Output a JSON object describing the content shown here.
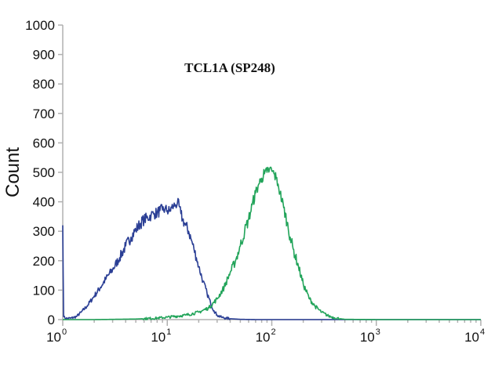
{
  "chart_data": {
    "type": "line",
    "title": "TCL1A (SP248)",
    "xlabel": "",
    "ylabel": "Count",
    "xscale": "log",
    "xlim": [
      1,
      10000
    ],
    "ylim": [
      0,
      1000
    ],
    "grid": false,
    "yticks": [
      "0",
      "100",
      "200",
      "300",
      "400",
      "500",
      "600",
      "700",
      "800",
      "900",
      "1000"
    ],
    "xticks": [
      {
        "base": "10",
        "exp": "0"
      },
      {
        "base": "10",
        "exp": "1"
      },
      {
        "base": "10",
        "exp": "2"
      },
      {
        "base": "10",
        "exp": "3"
      },
      {
        "base": "10",
        "exp": "4"
      }
    ],
    "series": [
      {
        "color": "#2b3f95",
        "x": [
          1,
          1.02,
          1.05,
          1.1,
          1.2,
          1.35,
          1.5,
          1.7,
          2,
          2.3,
          2.6,
          3,
          3.5,
          4,
          4.5,
          5,
          5.5,
          6,
          6.5,
          7,
          7.5,
          8,
          8.5,
          9,
          9.5,
          10,
          10.5,
          11,
          11.5,
          12,
          12.5,
          13,
          13.5,
          14,
          15,
          16,
          17,
          18,
          19,
          20,
          22,
          24,
          26,
          28,
          30,
          33,
          36,
          40,
          50,
          70,
          100,
          200,
          500,
          1000,
          10000
        ],
        "y": [
          320,
          10,
          5,
          4,
          5,
          10,
          25,
          45,
          80,
          110,
          140,
          170,
          210,
          250,
          280,
          305,
          325,
          340,
          345,
          355,
          360,
          362,
          370,
          372,
          375,
          370,
          368,
          380,
          385,
          390,
          395,
          385,
          360,
          340,
          320,
          300,
          270,
          240,
          210,
          180,
          130,
          90,
          55,
          30,
          15,
          8,
          5,
          3,
          1,
          0,
          0,
          0,
          0,
          0,
          0
        ]
      },
      {
        "color": "#22a45a",
        "x": [
          1,
          2,
          5,
          8,
          10,
          15,
          20,
          25,
          30,
          35,
          40,
          45,
          50,
          55,
          60,
          65,
          70,
          75,
          80,
          85,
          90,
          95,
          100,
          105,
          110,
          115,
          120,
          130,
          140,
          150,
          160,
          180,
          200,
          230,
          260,
          300,
          350,
          400,
          450,
          500,
          1000,
          10000
        ],
        "y": [
          0,
          0,
          2,
          5,
          8,
          15,
          25,
          40,
          70,
          110,
          160,
          200,
          250,
          300,
          340,
          390,
          430,
          460,
          480,
          495,
          500,
          510,
          505,
          495,
          480,
          460,
          430,
          380,
          330,
          280,
          240,
          180,
          120,
          70,
          45,
          25,
          12,
          6,
          3,
          1,
          0,
          0
        ]
      }
    ]
  }
}
